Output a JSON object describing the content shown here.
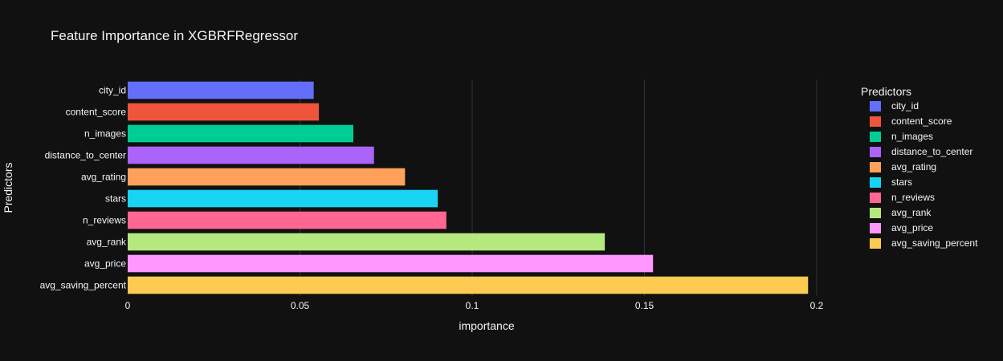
{
  "chart_data": {
    "type": "bar",
    "orientation": "horizontal",
    "title": "Feature Importance in XGBRFRegressor",
    "xlabel": "importance",
    "ylabel": "Predictors",
    "xlim": [
      0,
      0.2
    ],
    "x_ticks": [
      0,
      0.05,
      0.1,
      0.15,
      0.2
    ],
    "x_tick_labels": [
      "0",
      "0.05",
      "0.1",
      "0.15",
      "0.2"
    ],
    "grid": true,
    "legend": {
      "title": "Predictors",
      "position": "right"
    },
    "series": [
      {
        "name": "city_id",
        "value": 0.054,
        "color": "#636efa"
      },
      {
        "name": "content_score",
        "value": 0.0555,
        "color": "#ef553b"
      },
      {
        "name": "n_images",
        "value": 0.0655,
        "color": "#00cc96"
      },
      {
        "name": "distance_to_center",
        "value": 0.0715,
        "color": "#ab63fa"
      },
      {
        "name": "avg_rating",
        "value": 0.0805,
        "color": "#ffa15a"
      },
      {
        "name": "stars",
        "value": 0.09,
        "color": "#19d3f3"
      },
      {
        "name": "n_reviews",
        "value": 0.0925,
        "color": "#ff6692"
      },
      {
        "name": "avg_rank",
        "value": 0.1385,
        "color": "#b6e880"
      },
      {
        "name": "avg_price",
        "value": 0.1525,
        "color": "#ff97ff"
      },
      {
        "name": "avg_saving_percent",
        "value": 0.1975,
        "color": "#fecb52"
      }
    ]
  },
  "colors": {
    "background": "#111111",
    "text": "#f2f5fa",
    "grid": "#283442"
  }
}
